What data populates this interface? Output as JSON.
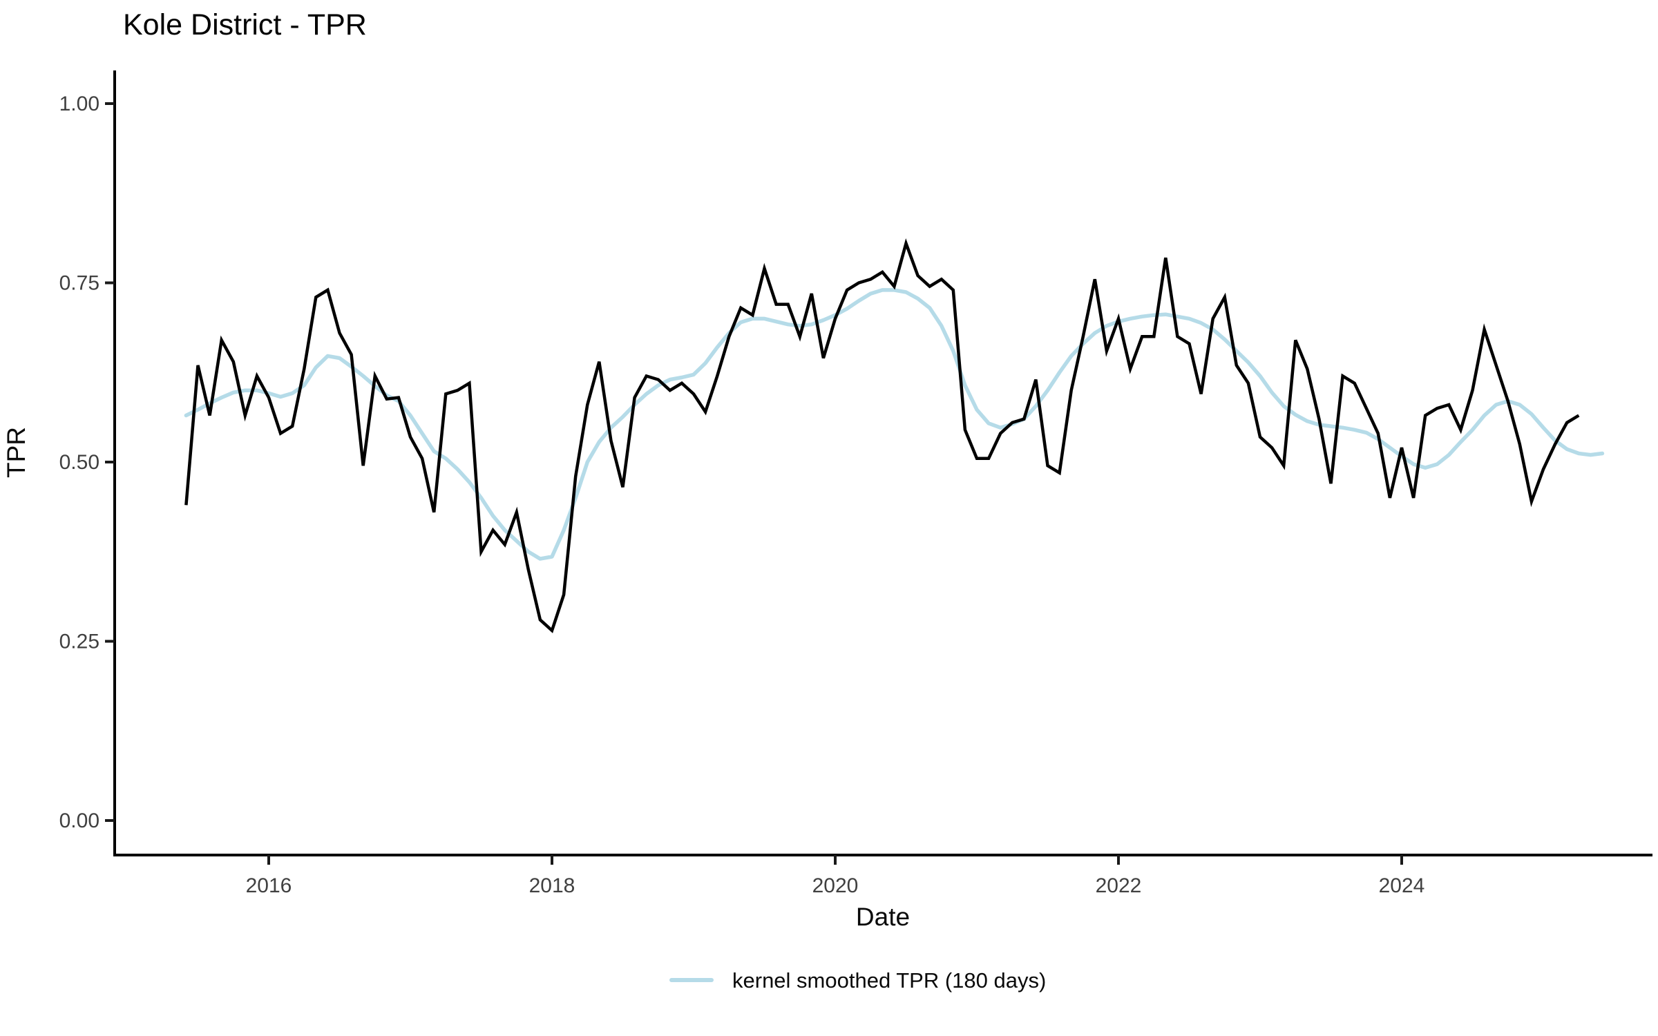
{
  "chart": {
    "title": "Kole District - TPR",
    "x_axis": {
      "label": "Date",
      "tick_labels": [
        "2016",
        "2018",
        "2020",
        "2022",
        "2024"
      ],
      "tick_values": [
        2016,
        2018,
        2020,
        2022,
        2024
      ]
    },
    "y_axis": {
      "label": "TPR",
      "tick_labels": [
        "0.00",
        "0.25",
        "0.50",
        "0.75",
        "1.00"
      ],
      "tick_values": [
        0,
        0.25,
        0.5,
        0.75,
        1
      ]
    },
    "legend": {
      "items": [
        {
          "label": "kernel smoothed TPR (180 days)",
          "color": "#b5dbe8"
        }
      ]
    },
    "colors": {
      "tpr_line": "#000000",
      "smoothed_line": "#b5dbe8",
      "axis_line": "#000000",
      "tick_mark": "#1a1a1a",
      "tick_text": "#404040",
      "background": "#ffffff"
    }
  },
  "chart_data": {
    "type": "line",
    "title": "Kole District - TPR",
    "xlabel": "Date",
    "ylabel": "TPR",
    "x_tick_years": [
      2016,
      2018,
      2020,
      2022,
      2024
    ],
    "y_ticks": [
      0,
      0.25,
      0.5,
      0.75,
      1
    ],
    "ylim": [
      0,
      1.05
    ],
    "grid": false,
    "legend_position": "bottom",
    "x_months": [
      "2015-06",
      "2015-07",
      "2015-08",
      "2015-09",
      "2015-10",
      "2015-11",
      "2015-12",
      "2016-01",
      "2016-02",
      "2016-03",
      "2016-04",
      "2016-05",
      "2016-06",
      "2016-07",
      "2016-08",
      "2016-09",
      "2016-10",
      "2016-11",
      "2016-12",
      "2017-01",
      "2017-02",
      "2017-03",
      "2017-04",
      "2017-05",
      "2017-06",
      "2017-07",
      "2017-08",
      "2017-09",
      "2017-10",
      "2017-11",
      "2017-12",
      "2018-01",
      "2018-02",
      "2018-03",
      "2018-04",
      "2018-05",
      "2018-06",
      "2018-07",
      "2018-08",
      "2018-09",
      "2018-10",
      "2018-11",
      "2018-12",
      "2019-01",
      "2019-02",
      "2019-03",
      "2019-04",
      "2019-05",
      "2019-06",
      "2019-07",
      "2019-08",
      "2019-09",
      "2019-10",
      "2019-11",
      "2019-12",
      "2020-01",
      "2020-02",
      "2020-03",
      "2020-04",
      "2020-05",
      "2020-06",
      "2020-07",
      "2020-08",
      "2020-09",
      "2020-10",
      "2020-11",
      "2020-12",
      "2021-01",
      "2021-02",
      "2021-03",
      "2021-04",
      "2021-05",
      "2021-06",
      "2021-07",
      "2021-08",
      "2021-09",
      "2021-10",
      "2021-11",
      "2021-12",
      "2022-01",
      "2022-02",
      "2022-03",
      "2022-04",
      "2022-05",
      "2022-06",
      "2022-07",
      "2022-08",
      "2022-09",
      "2022-10",
      "2022-11",
      "2022-12",
      "2023-01",
      "2023-02",
      "2023-03",
      "2023-04",
      "2023-05",
      "2023-06",
      "2023-07",
      "2023-08",
      "2023-09",
      "2023-10",
      "2023-11",
      "2023-12",
      "2024-01",
      "2024-02",
      "2024-03",
      "2024-04",
      "2024-05",
      "2024-06",
      "2024-07",
      "2024-08",
      "2024-09",
      "2024-10",
      "2024-11",
      "2024-12",
      "2025-01",
      "2025-02",
      "2025-03",
      "2025-04",
      "2025-05",
      "2025-06"
    ],
    "series": [
      {
        "name": "TPR",
        "color": "#000000",
        "stroke_width": 4.5,
        "values": [
          0.44,
          0.635,
          0.565,
          0.67,
          0.64,
          0.565,
          0.62,
          0.59,
          0.54,
          0.55,
          0.63,
          0.73,
          0.74,
          0.68,
          0.65,
          0.495,
          0.62,
          0.588,
          0.59,
          0.535,
          0.505,
          0.43,
          0.595,
          0.6,
          0.61,
          0.375,
          0.405,
          0.385,
          0.43,
          0.35,
          0.28,
          0.265,
          0.315,
          0.48,
          0.58,
          0.64,
          0.53,
          0.465,
          0.59,
          0.62,
          0.615,
          0.6,
          0.61,
          0.595,
          0.57,
          0.62,
          0.675,
          0.715,
          0.705,
          0.77,
          0.72,
          0.72,
          0.675,
          0.735,
          0.645,
          0.7,
          0.74,
          0.75,
          0.755,
          0.765,
          0.745,
          0.805,
          0.76,
          0.745,
          0.755,
          0.74,
          0.545,
          0.505,
          0.505,
          0.54,
          0.555,
          0.56,
          0.615,
          0.495,
          0.485,
          0.6,
          0.675,
          0.755,
          0.655,
          0.7,
          0.63,
          0.675,
          0.675,
          0.785,
          0.675,
          0.665,
          0.595,
          0.7,
          0.73,
          0.635,
          0.61,
          0.535,
          0.52,
          0.495,
          0.67,
          0.63,
          0.56,
          0.47,
          0.62,
          0.61,
          0.575,
          0.54,
          0.45,
          0.52,
          0.45,
          0.565,
          0.575,
          0.58,
          0.545,
          0.6,
          0.685,
          0.635,
          0.585,
          0.525,
          0.445,
          0.49,
          0.525,
          0.555,
          0.565,
          null,
          null
        ]
      },
      {
        "name": "kernel smoothed TPR (180 days)",
        "color": "#b5dbe8",
        "stroke_width": 5.5,
        "values": [
          0.565,
          0.573,
          0.582,
          0.59,
          0.597,
          0.6,
          0.6,
          0.596,
          0.591,
          0.596,
          0.607,
          0.632,
          0.648,
          0.645,
          0.633,
          0.62,
          0.606,
          0.593,
          0.585,
          0.565,
          0.54,
          0.515,
          0.505,
          0.49,
          0.472,
          0.45,
          0.425,
          0.405,
          0.39,
          0.375,
          0.365,
          0.368,
          0.405,
          0.45,
          0.5,
          0.528,
          0.548,
          0.563,
          0.58,
          0.595,
          0.607,
          0.615,
          0.618,
          0.622,
          0.638,
          0.66,
          0.68,
          0.695,
          0.7,
          0.7,
          0.696,
          0.692,
          0.69,
          0.692,
          0.698,
          0.705,
          0.714,
          0.725,
          0.735,
          0.74,
          0.74,
          0.737,
          0.728,
          0.715,
          0.69,
          0.655,
          0.607,
          0.573,
          0.554,
          0.548,
          0.553,
          0.56,
          0.578,
          0.6,
          0.625,
          0.648,
          0.665,
          0.68,
          0.69,
          0.696,
          0.7,
          0.703,
          0.705,
          0.706,
          0.703,
          0.7,
          0.694,
          0.685,
          0.671,
          0.655,
          0.639,
          0.62,
          0.597,
          0.578,
          0.566,
          0.557,
          0.552,
          0.55,
          0.548,
          0.545,
          0.541,
          0.532,
          0.52,
          0.508,
          0.497,
          0.492,
          0.497,
          0.51,
          0.528,
          0.545,
          0.565,
          0.58,
          0.585,
          0.58,
          0.567,
          0.548,
          0.53,
          0.518,
          0.512,
          0.51,
          0.512
        ]
      }
    ]
  }
}
